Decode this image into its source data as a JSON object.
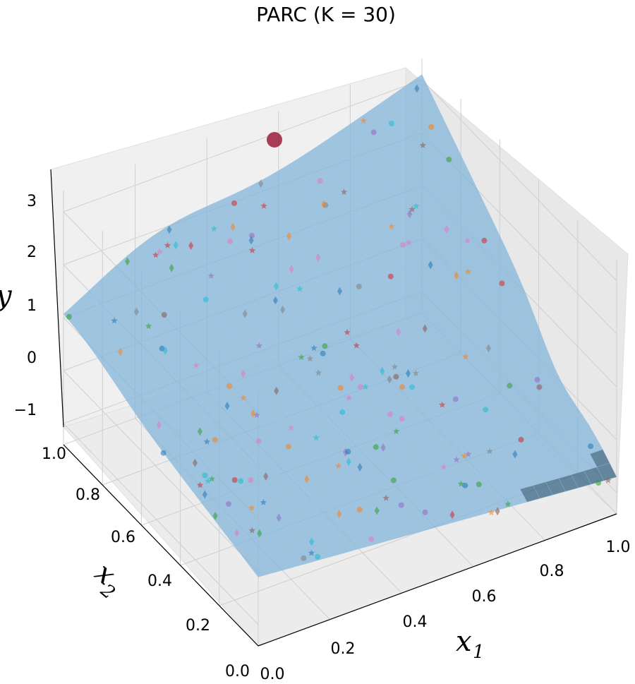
{
  "chart_data": {
    "type": "surface3d",
    "title": "PARC (K = 30)",
    "xlabel": "x",
    "xlabel_sub": "1",
    "ylabel": "x",
    "ylabel_sub": "2",
    "zlabel": "y",
    "x_ticks": [
      "0.0",
      "0.2",
      "0.4",
      "0.6",
      "0.8",
      "1.0"
    ],
    "y_ticks": [
      "0.0",
      "0.2",
      "0.4",
      "0.6",
      "0.8",
      "1.0"
    ],
    "z_ticks": [
      "−1",
      "0",
      "1",
      "2",
      "3"
    ],
    "xlim": [
      0,
      1
    ],
    "ylim": [
      0,
      1
    ],
    "zlim": [
      -1.4,
      3.4
    ],
    "grid": true,
    "surface_color": "#7fb3d9",
    "surface_dark_color": "#2f5f7f",
    "surface_corners": {
      "x0_y0": -0.1,
      "x1_y0": -0.7,
      "x0_y1": 0.9,
      "x1_y1": 3.1,
      "ridge_x0_y1": 0.9
    },
    "highlight_point": {
      "x": 0.2,
      "y": 1.0,
      "z": 3.0,
      "color": "#9a1f3a"
    },
    "cluster_colors": [
      "#1f77b4",
      "#ff7f0e",
      "#2ca02c",
      "#d62728",
      "#9467bd",
      "#8c564b",
      "#e377c2",
      "#7f7f7f",
      "#17becf"
    ]
  }
}
